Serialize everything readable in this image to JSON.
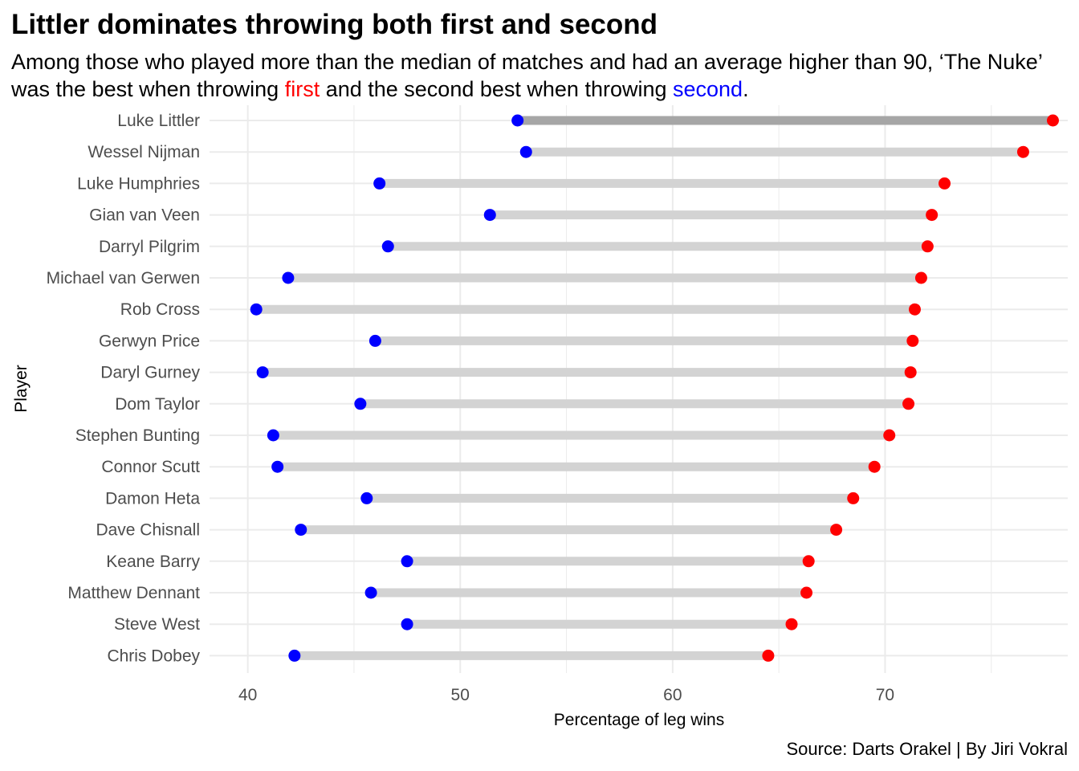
{
  "chart_data": {
    "type": "dumbbell",
    "title": "Littler dominates throwing both first and second",
    "subtitle": {
      "text_before": "Among those who played more than the median of matches and had an average higher than 90, ‘The Nuke’ was the best when throwing ",
      "first_word": "first",
      "text_middle": " and the second best when throwing ",
      "second_word": "second",
      "text_after": "."
    },
    "caption": "Source: Darts Orakel | By Jiri Vokral",
    "xlabel": "Percentage of leg wins",
    "ylabel": "Player",
    "xlim": [
      38.2,
      78.6
    ],
    "x_ticks": [
      40,
      50,
      60,
      70
    ],
    "grid": true,
    "colors": {
      "first": "#ff0000",
      "second": "#0000ff",
      "segment": "#d3d3d3",
      "segment_highlight": "#a6a6a6",
      "grid": "#ebebeb"
    },
    "highlight_player": "Luke Littler",
    "players": [
      "Luke Littler",
      "Wessel Nijman",
      "Luke Humphries",
      "Gian van Veen",
      "Darryl Pilgrim",
      "Michael van Gerwen",
      "Rob Cross",
      "Gerwyn Price",
      "Daryl Gurney",
      "Dom Taylor",
      "Stephen Bunting",
      "Connor Scutt",
      "Damon Heta",
      "Dave Chisnall",
      "Keane Barry",
      "Matthew Dennant",
      "Steve West",
      "Chris Dobey"
    ],
    "series": [
      {
        "name": "first",
        "values": [
          77.9,
          76.5,
          72.8,
          72.2,
          72.0,
          71.7,
          71.4,
          71.3,
          71.2,
          71.1,
          70.2,
          69.5,
          68.5,
          67.7,
          66.4,
          66.3,
          65.6,
          64.5
        ]
      },
      {
        "name": "second",
        "values": [
          52.7,
          53.1,
          46.2,
          51.4,
          46.6,
          41.9,
          40.4,
          46.0,
          40.7,
          45.3,
          41.2,
          41.4,
          45.6,
          42.5,
          47.5,
          45.8,
          47.5,
          42.2
        ]
      }
    ]
  }
}
